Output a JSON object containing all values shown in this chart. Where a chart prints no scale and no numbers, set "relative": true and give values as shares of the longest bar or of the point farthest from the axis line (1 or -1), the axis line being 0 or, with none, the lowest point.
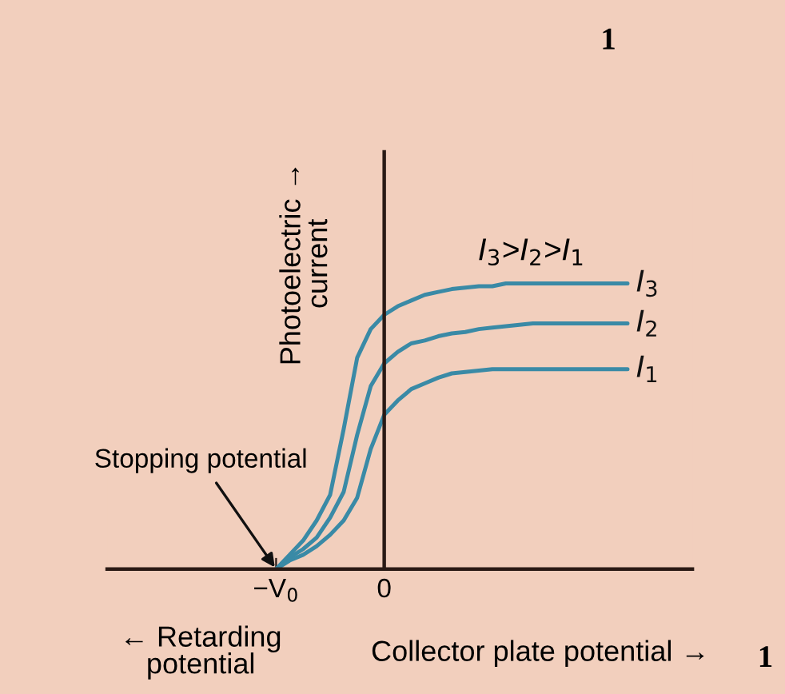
{
  "chart_data": {
    "type": "line",
    "relative": true,
    "xlabel": "Collector plate potential →",
    "ylabel": "Photoelectric →\ncurrent",
    "categories": [
      null,
      null,
      null,
      null,
      null,
      null,
      null,
      null,
      null,
      null,
      null,
      null,
      "−V$_{0}$",
      null,
      null,
      null,
      null,
      null,
      null,
      null,
      "0",
      null,
      null,
      null,
      null,
      null,
      null,
      null,
      null,
      null,
      null,
      null,
      null,
      null,
      null,
      null,
      null,
      null,
      null
    ],
    "series": [
      {
        "name": "I$_{3}$",
        "color": "#3a8aa6",
        "values": [
          null,
          null,
          null,
          null,
          null,
          null,
          null,
          null,
          null,
          null,
          null,
          null,
          0,
          0.05,
          0.1,
          0.17,
          0.26,
          0.49,
          0.74,
          0.84,
          0.89,
          0.92,
          0.94,
          0.96,
          0.97,
          0.98,
          0.985,
          0.99,
          0.99,
          1.0,
          1.0,
          1.0,
          1.0,
          1.0,
          1.0,
          1.0,
          1.0,
          1.0,
          1.0
        ]
      },
      {
        "name": "I$_{2}$",
        "color": "#3a8aa6",
        "values": [
          null,
          null,
          null,
          null,
          null,
          null,
          null,
          null,
          null,
          null,
          null,
          null,
          0,
          0.04,
          0.07,
          0.11,
          0.18,
          0.27,
          0.47,
          0.64,
          0.72,
          0.76,
          0.79,
          0.8,
          0.815,
          0.825,
          0.83,
          0.84,
          0.845,
          0.85,
          0.855,
          0.86,
          0.86,
          0.86,
          0.86,
          0.86,
          0.86,
          0.86,
          0.86
        ]
      },
      {
        "name": "I$_{1}$",
        "color": "#3a8aa6",
        "values": [
          null,
          null,
          null,
          null,
          null,
          null,
          null,
          null,
          null,
          null,
          null,
          null,
          0,
          0.03,
          0.05,
          0.08,
          0.12,
          0.17,
          0.25,
          0.42,
          0.54,
          0.59,
          0.63,
          0.65,
          0.67,
          0.685,
          0.69,
          0.695,
          0.7,
          0.7,
          0.7,
          0.7,
          0.7,
          0.7,
          0.7,
          0.7,
          0.7,
          0.7,
          0.7
        ]
      }
    ],
    "annotations": [
      "I$_{3}$>I$_{2}$>I$_{1}$",
      "Stopping potential",
      "← Retarding\npotential",
      "1",
      "1"
    ],
    "marker": "none",
    "line_style": "solid",
    "legend": false
  }
}
